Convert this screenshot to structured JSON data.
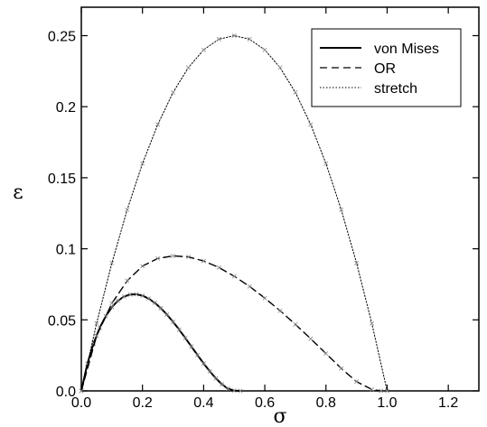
{
  "chart_data": {
    "type": "line",
    "xlabel": "σ",
    "ylabel": "ε",
    "xlim": [
      0,
      1.3
    ],
    "ylim": [
      0,
      0.27
    ],
    "xticks": [
      0.0,
      0.2,
      0.4,
      0.6,
      0.8,
      1.0,
      1.2
    ],
    "xtick_labels": [
      "0.0",
      "0.2",
      "0.4",
      "0.6",
      "0.8",
      "1.0",
      "1.2"
    ],
    "yticks": [
      0.0,
      0.05,
      0.1,
      0.15,
      0.2,
      0.25
    ],
    "ytick_labels": [
      "0.0",
      "0.05",
      "0.1",
      "0.15",
      "0.2",
      "0.25"
    ],
    "grid": false,
    "legend_position": "top-right",
    "series": [
      {
        "name": "von Mises",
        "style": "solid",
        "markers": "x",
        "x": [
          0,
          0.02,
          0.04,
          0.06,
          0.08,
          0.1,
          0.12,
          0.14,
          0.16,
          0.18,
          0.2,
          0.22,
          0.24,
          0.26,
          0.28,
          0.3,
          0.32,
          0.34,
          0.36,
          0.38,
          0.4,
          0.42,
          0.44,
          0.46,
          0.48,
          0.5,
          0.52
        ],
        "y": [
          0,
          0.0192,
          0.0334,
          0.0443,
          0.0526,
          0.059,
          0.0635,
          0.0664,
          0.0678,
          0.068,
          0.067,
          0.065,
          0.062,
          0.0582,
          0.0537,
          0.0486,
          0.0431,
          0.0372,
          0.0312,
          0.0252,
          0.0193,
          0.0138,
          0.0088,
          0.0046,
          0.0015,
          0.0002,
          0.0
        ]
      },
      {
        "name": "OR",
        "style": "dashed",
        "markers": "x",
        "x": [
          0,
          0.05,
          0.1,
          0.15,
          0.2,
          0.25,
          0.3,
          0.35,
          0.4,
          0.45,
          0.5,
          0.55,
          0.6,
          0.65,
          0.7,
          0.75,
          0.8,
          0.85,
          0.9,
          0.95,
          0.98
        ],
        "y": [
          0,
          0.0388,
          0.0616,
          0.0775,
          0.0878,
          0.0932,
          0.095,
          0.0943,
          0.0914,
          0.0868,
          0.0807,
          0.0735,
          0.0653,
          0.0564,
          0.0468,
          0.0367,
          0.0263,
          0.0158,
          0.0065,
          0.001,
          0.0
        ]
      },
      {
        "name": "stretch",
        "style": "dotted",
        "markers": "x",
        "x": [
          0,
          0.05,
          0.1,
          0.15,
          0.2,
          0.25,
          0.3,
          0.35,
          0.4,
          0.45,
          0.5,
          0.55,
          0.6,
          0.65,
          0.7,
          0.75,
          0.8,
          0.85,
          0.9,
          0.95,
          1.0
        ],
        "y": [
          0,
          0.0475,
          0.09,
          0.1275,
          0.16,
          0.1875,
          0.21,
          0.2275,
          0.24,
          0.2475,
          0.25,
          0.2475,
          0.24,
          0.2275,
          0.21,
          0.1875,
          0.16,
          0.1275,
          0.09,
          0.0475,
          0.0
        ]
      }
    ]
  }
}
